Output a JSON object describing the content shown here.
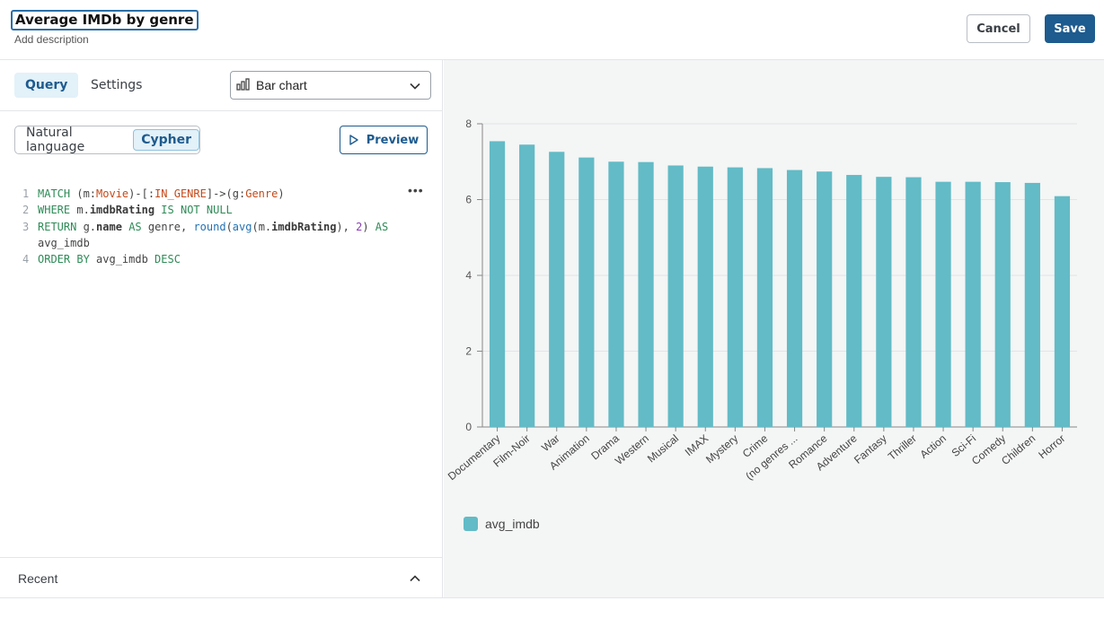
{
  "header": {
    "title": "Average IMDb by genre",
    "description_placeholder": "Add description",
    "cancel_label": "Cancel",
    "save_label": "Save"
  },
  "tabs": [
    {
      "label": "Query",
      "active": true
    },
    {
      "label": "Settings",
      "active": false
    }
  ],
  "chart_type_select": {
    "value": "Bar chart",
    "icon": "bar-chart-icon"
  },
  "mode_toggle": {
    "options": [
      "Natural language",
      "Cypher"
    ],
    "active": "Cypher"
  },
  "preview_label": "Preview",
  "query_lines": [
    {
      "n": "1",
      "tokens": [
        [
          "kw",
          "MATCH"
        ],
        [
          "plain",
          " (m:"
        ],
        [
          "lbl",
          "Movie"
        ],
        [
          "plain",
          ")-[:"
        ],
        [
          "lbl",
          "IN_GENRE"
        ],
        [
          "plain",
          "]->(g:"
        ],
        [
          "lbl",
          "Genre"
        ],
        [
          "plain",
          ")"
        ]
      ]
    },
    {
      "n": "2",
      "tokens": [
        [
          "kw",
          "WHERE"
        ],
        [
          "plain",
          " m."
        ],
        [
          "prop",
          "imdbRating"
        ],
        [
          "plain",
          " "
        ],
        [
          "kw",
          "IS NOT NULL"
        ]
      ]
    },
    {
      "n": "3",
      "tokens": [
        [
          "kw",
          "RETURN"
        ],
        [
          "plain",
          " g."
        ],
        [
          "prop",
          "name"
        ],
        [
          "plain",
          " "
        ],
        [
          "kw",
          "AS"
        ],
        [
          "plain",
          " genre, "
        ],
        [
          "fn",
          "round"
        ],
        [
          "plain",
          "("
        ],
        [
          "fn",
          "avg"
        ],
        [
          "plain",
          "(m."
        ],
        [
          "prop",
          "imdbRating"
        ],
        [
          "plain",
          "), "
        ],
        [
          "num",
          "2"
        ],
        [
          "plain",
          ") "
        ],
        [
          "kw",
          "AS"
        ]
      ]
    },
    {
      "n": "",
      "tokens": [
        [
          "plain",
          "avg_imdb"
        ]
      ]
    },
    {
      "n": "4",
      "tokens": [
        [
          "kw",
          "ORDER BY"
        ],
        [
          "plain",
          " avg_imdb "
        ],
        [
          "kw",
          "DESC"
        ]
      ]
    }
  ],
  "recent_label": "Recent",
  "colors": {
    "bar": "#62bbc6",
    "accent": "#1e5b8e"
  },
  "chart_data": {
    "type": "bar",
    "categories": [
      "Documentary",
      "Film-Noir",
      "War",
      "Animation",
      "Drama",
      "Western",
      "Musical",
      "IMAX",
      "Mystery",
      "Crime",
      "(no genres ...",
      "Romance",
      "Adventure",
      "Fantasy",
      "Thriller",
      "Action",
      "Sci-Fi",
      "Comedy",
      "Children",
      "Horror"
    ],
    "series": [
      {
        "name": "avg_imdb",
        "values": [
          7.54,
          7.45,
          7.26,
          7.11,
          7.0,
          6.99,
          6.9,
          6.87,
          6.85,
          6.83,
          6.78,
          6.74,
          6.65,
          6.6,
          6.59,
          6.47,
          6.47,
          6.46,
          6.44,
          6.09
        ]
      }
    ],
    "ylim": [
      0,
      8
    ],
    "yticks": [
      0,
      2,
      4,
      6,
      8
    ],
    "grid": true,
    "legend": "bottom-left"
  }
}
